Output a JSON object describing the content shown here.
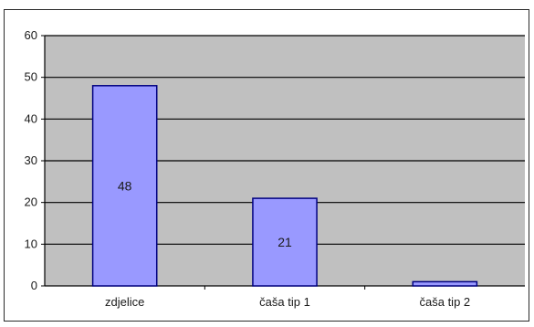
{
  "chart_data": {
    "type": "bar",
    "categories": [
      "zdjelice",
      "čaša tip 1",
      "čaša tip 2"
    ],
    "values": [
      48,
      21,
      1
    ],
    "data_labels": [
      "48",
      "21",
      ""
    ],
    "ylim": [
      0,
      60
    ],
    "yticks": [
      0,
      10,
      20,
      30,
      40,
      50,
      60
    ],
    "grid": true,
    "title": "",
    "xlabel": "",
    "ylabel": "",
    "colors": {
      "plot_background": "#c0c0c0",
      "bar_fill": "#9999ff",
      "bar_stroke": "#000080",
      "gridline": "#000000"
    }
  }
}
